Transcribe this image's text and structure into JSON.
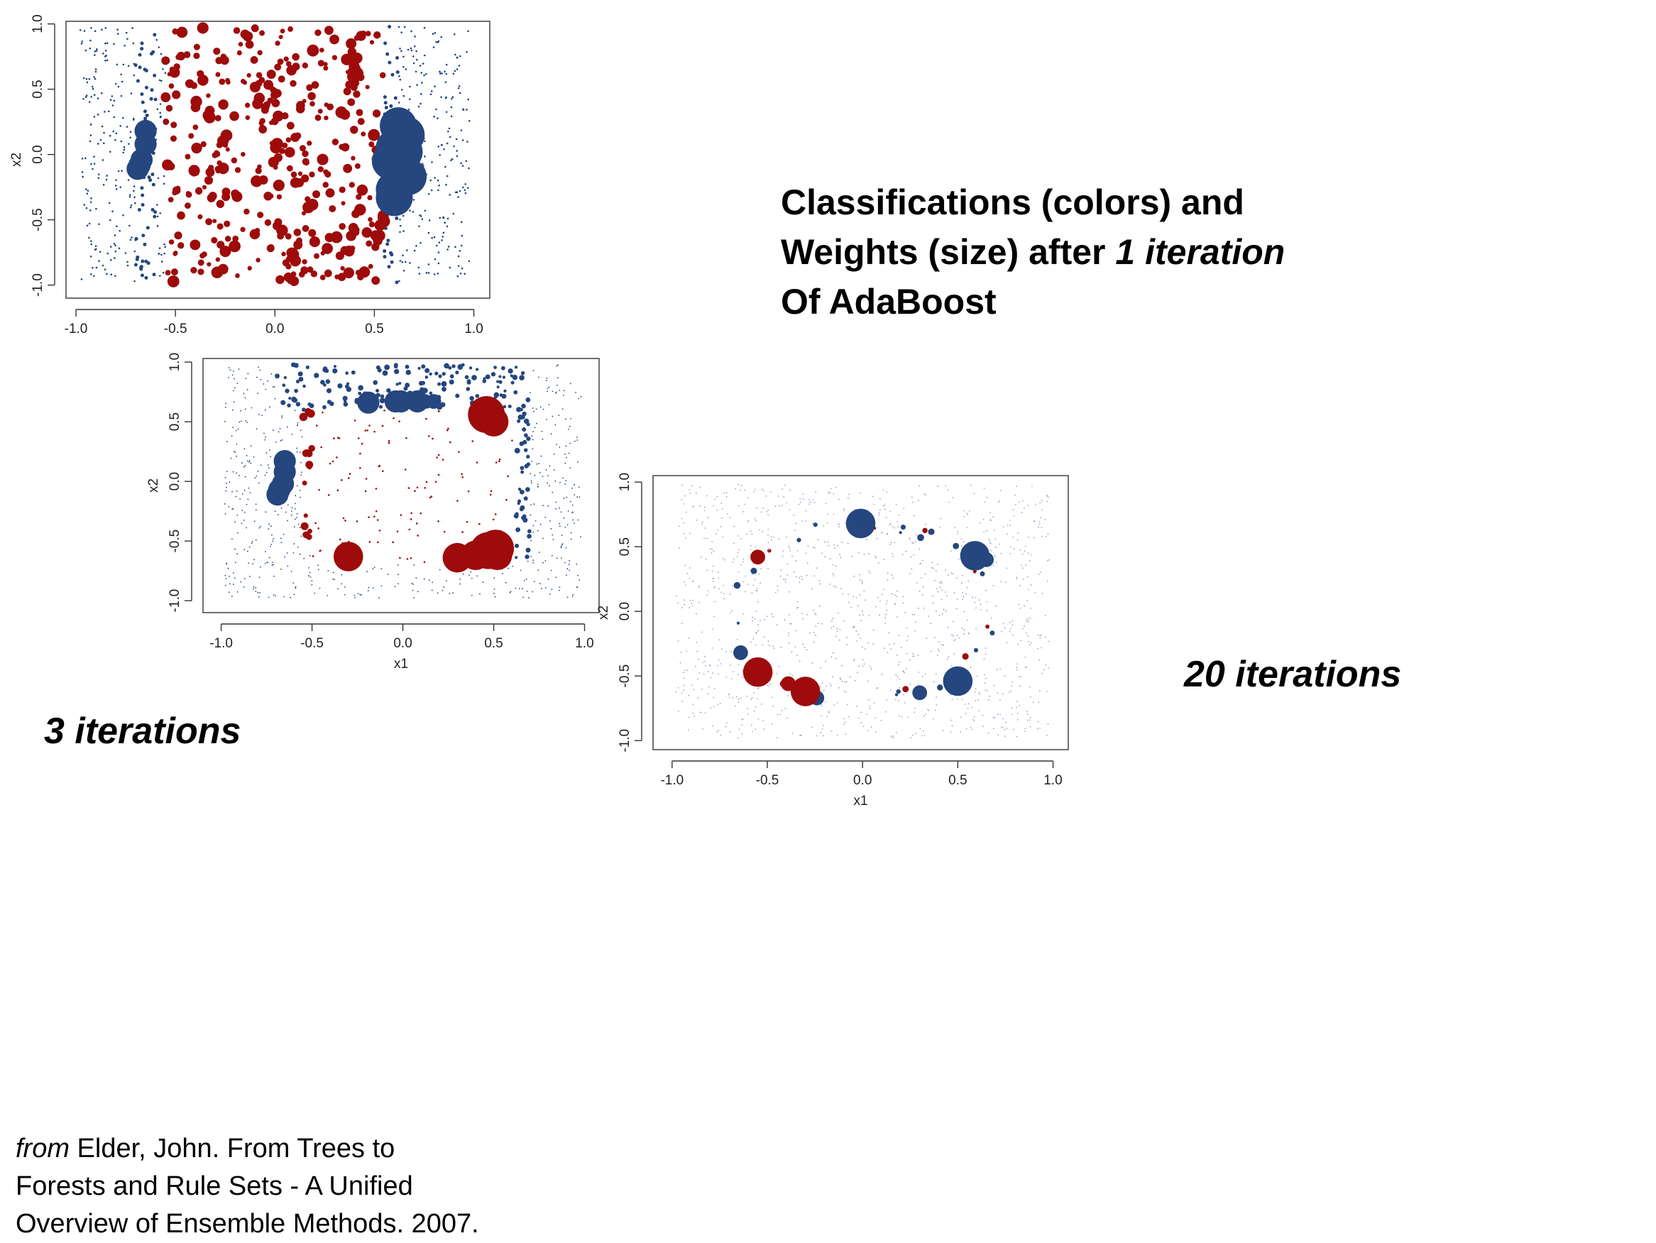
{
  "caption": {
    "line1": "Classifications (colors) and",
    "line2_start": "Weights (size) after ",
    "line2_italic": "1 iteration",
    "line3": "Of AdaBoost"
  },
  "titles": {
    "iter3": "3 iterations",
    "iter20": "20 iterations"
  },
  "citation": {
    "italic": "from",
    "line1_rest": " Elder, John.  From Trees to",
    "line2": "Forests and Rule Sets - A Unified",
    "line3": "Overview of Ensemble Methods.  2007."
  },
  "colors": {
    "blue": "#25467e",
    "red": "#9e0b0b",
    "frame": "#333333"
  },
  "chart_data": [
    {
      "type": "scatter",
      "panel": "1 iteration",
      "xlabel": "",
      "ylabel": "x2",
      "xlim": [
        -1.0,
        1.0
      ],
      "ylim": [
        -1.0,
        1.0
      ],
      "xticks": [
        "-1.0",
        "-0.5",
        "0.0",
        "0.5",
        "1.0"
      ],
      "yticks": [
        "-1.0",
        "-0.5",
        "0.0",
        "0.5",
        "1.0"
      ],
      "grid": false,
      "points_note": "red = inner square |x1|<~0.55, blue = outer; marker size = AdaBoost weight",
      "large_points": [
        {
          "x": 0.62,
          "y": 0.22,
          "class": "blue",
          "w": 5
        },
        {
          "x": 0.66,
          "y": 0.15,
          "class": "blue",
          "w": 5
        },
        {
          "x": 0.6,
          "y": 0.05,
          "class": "blue",
          "w": 5
        },
        {
          "x": 0.65,
          "y": 0.02,
          "class": "blue",
          "w": 5
        },
        {
          "x": 0.58,
          "y": -0.05,
          "class": "blue",
          "w": 5
        },
        {
          "x": 0.63,
          "y": -0.1,
          "class": "blue",
          "w": 5
        },
        {
          "x": 0.67,
          "y": -0.17,
          "class": "blue",
          "w": 5
        },
        {
          "x": 0.6,
          "y": -0.27,
          "class": "blue",
          "w": 5
        },
        {
          "x": 0.6,
          "y": -0.33,
          "class": "blue",
          "w": 5
        },
        {
          "x": -0.65,
          "y": 0.18,
          "class": "blue",
          "w": 3
        },
        {
          "x": -0.65,
          "y": 0.08,
          "class": "blue",
          "w": 3
        },
        {
          "x": -0.67,
          "y": -0.04,
          "class": "blue",
          "w": 3
        },
        {
          "x": -0.68,
          "y": -0.08,
          "class": "blue",
          "w": 3
        },
        {
          "x": -0.69,
          "y": -0.11,
          "class": "blue",
          "w": 3
        }
      ]
    },
    {
      "type": "scatter",
      "panel": "3 iterations",
      "xlabel": "x1",
      "ylabel": "x2",
      "xlim": [
        -1.0,
        1.0
      ],
      "ylim": [
        -1.0,
        1.0
      ],
      "xticks": [
        "-1.0",
        "-0.5",
        "0.0",
        "0.5",
        "1.0"
      ],
      "yticks": [
        "-1.0",
        "-0.5",
        "0.0",
        "0.5",
        "1.0"
      ],
      "grid": false,
      "large_points": [
        {
          "x": 0.46,
          "y": 0.56,
          "class": "red",
          "w": 5
        },
        {
          "x": 0.5,
          "y": 0.5,
          "class": "red",
          "w": 4
        },
        {
          "x": -0.3,
          "y": -0.63,
          "class": "red",
          "w": 4
        },
        {
          "x": 0.3,
          "y": -0.64,
          "class": "red",
          "w": 4
        },
        {
          "x": 0.4,
          "y": -0.62,
          "class": "red",
          "w": 4
        },
        {
          "x": 0.47,
          "y": -0.58,
          "class": "red",
          "w": 5
        },
        {
          "x": 0.51,
          "y": -0.56,
          "class": "red",
          "w": 5
        },
        {
          "x": 0.52,
          "y": -0.62,
          "class": "red",
          "w": 4
        },
        {
          "x": -0.65,
          "y": 0.17,
          "class": "blue",
          "w": 3
        },
        {
          "x": -0.65,
          "y": 0.08,
          "class": "blue",
          "w": 3
        },
        {
          "x": -0.66,
          "y": -0.02,
          "class": "blue",
          "w": 3
        },
        {
          "x": -0.68,
          "y": -0.07,
          "class": "blue",
          "w": 3
        },
        {
          "x": -0.69,
          "y": -0.11,
          "class": "blue",
          "w": 3
        },
        {
          "x": -0.19,
          "y": 0.66,
          "class": "blue",
          "w": 3
        },
        {
          "x": -0.04,
          "y": 0.67,
          "class": "blue",
          "w": 3
        },
        {
          "x": -0.01,
          "y": 0.67,
          "class": "blue",
          "w": 3
        },
        {
          "x": 0.08,
          "y": 0.67,
          "class": "blue",
          "w": 3
        },
        {
          "x": 0.12,
          "y": 0.67,
          "class": "blue",
          "w": 2
        },
        {
          "x": 0.17,
          "y": 0.67,
          "class": "blue",
          "w": 2
        }
      ]
    },
    {
      "type": "scatter",
      "panel": "20 iterations",
      "xlabel": "x1",
      "ylabel": "x2",
      "xlim": [
        -1.0,
        1.0
      ],
      "ylim": [
        -1.0,
        1.0
      ],
      "xticks": [
        "-1.0",
        "-0.5",
        "0.0",
        "0.5",
        "1.0"
      ],
      "yticks": [
        "-1.0",
        "-0.5",
        "0.0",
        "0.5",
        "1.0"
      ],
      "grid": false,
      "large_points": [
        {
          "x": -0.01,
          "y": 0.68,
          "class": "blue",
          "w": 4
        },
        {
          "x": 0.59,
          "y": 0.43,
          "class": "blue",
          "w": 4
        },
        {
          "x": 0.65,
          "y": 0.4,
          "class": "blue",
          "w": 2
        },
        {
          "x": 0.5,
          "y": -0.54,
          "class": "blue",
          "w": 4
        },
        {
          "x": 0.3,
          "y": -0.63,
          "class": "blue",
          "w": 2
        },
        {
          "x": -0.24,
          "y": -0.67,
          "class": "blue",
          "w": 2
        },
        {
          "x": -0.64,
          "y": -0.32,
          "class": "blue",
          "w": 2
        },
        {
          "x": -0.55,
          "y": -0.47,
          "class": "red",
          "w": 4
        },
        {
          "x": -0.3,
          "y": -0.62,
          "class": "red",
          "w": 4
        },
        {
          "x": -0.39,
          "y": -0.56,
          "class": "red",
          "w": 2
        },
        {
          "x": -0.55,
          "y": 0.42,
          "class": "red",
          "w": 2
        }
      ]
    }
  ]
}
